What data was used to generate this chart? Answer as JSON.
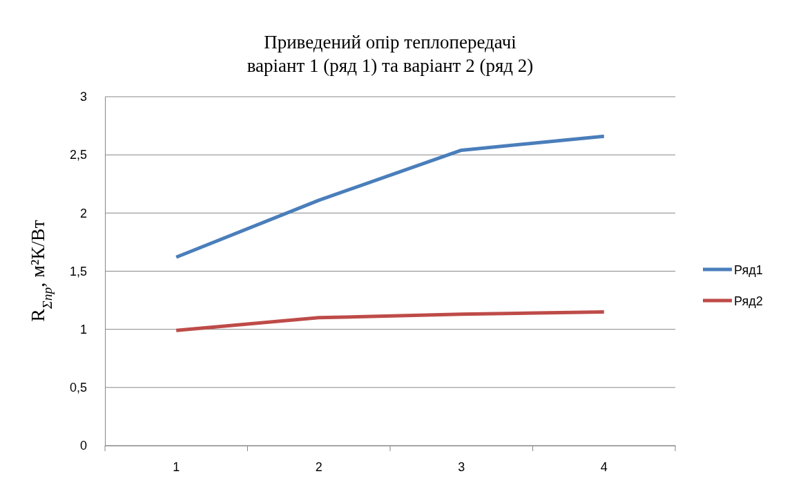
{
  "chart_data": {
    "type": "line",
    "title": "Приведений опір теплопередачі\nваріант 1 (ряд 1) та варіант 2 (ряд 2)",
    "ylabel": "R$_{Σпр}$, м²К/Вт",
    "categories": [
      "1",
      "2",
      "3",
      "4"
    ],
    "series": [
      {
        "name": "Ряд1",
        "color": "#4a7ebb",
        "values": [
          1.62,
          2.11,
          2.54,
          2.66
        ]
      },
      {
        "name": "Ряд2",
        "color": "#be4b48",
        "values": [
          0.99,
          1.1,
          1.13,
          1.15
        ]
      }
    ],
    "ylim": [
      0,
      3
    ],
    "yticks": [
      {
        "value": 0,
        "label": "0"
      },
      {
        "value": 0.5,
        "label": "0,5"
      },
      {
        "value": 1,
        "label": "1"
      },
      {
        "value": 1.5,
        "label": "1,5"
      },
      {
        "value": 2,
        "label": "2"
      },
      {
        "value": 2.5,
        "label": "2,5"
      },
      {
        "value": 3,
        "label": "3"
      }
    ],
    "grid": "y",
    "legend": "right",
    "marker": "none",
    "line_style": "solid"
  }
}
